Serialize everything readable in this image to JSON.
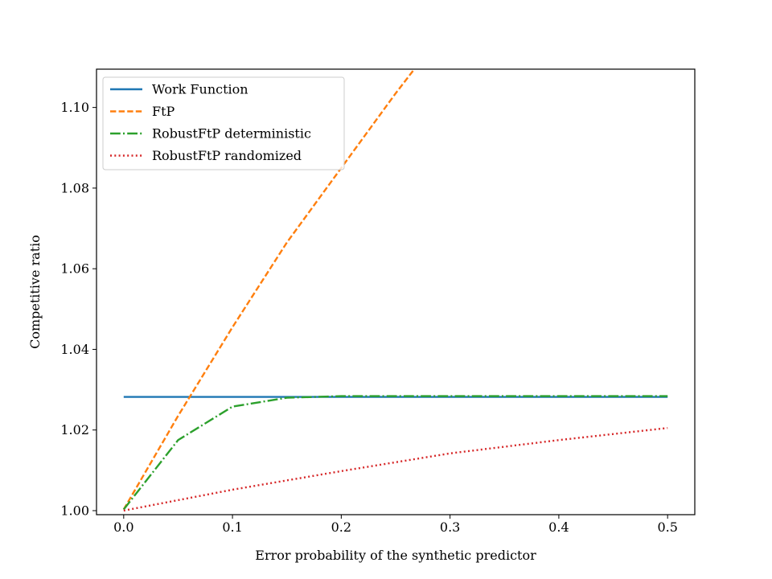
{
  "chart_data": {
    "type": "line",
    "title": "",
    "xlabel": "Error probability of the synthetic predictor",
    "ylabel": "Competitive ratio",
    "xlim": [
      -0.025,
      0.525
    ],
    "ylim": [
      0.999,
      1.1095
    ],
    "x_ticks": [
      0.0,
      0.1,
      0.2,
      0.3,
      0.4,
      0.5
    ],
    "x_tick_labels": [
      "0.0",
      "0.1",
      "0.2",
      "0.3",
      "0.4",
      "0.5"
    ],
    "y_ticks": [
      1.0,
      1.02,
      1.04,
      1.06,
      1.08,
      1.1
    ],
    "y_tick_labels": [
      "1.00",
      "1.02",
      "1.04",
      "1.06",
      "1.08",
      "1.10"
    ],
    "grid": false,
    "legend_position": "top-left",
    "series": [
      {
        "name": "Work Function",
        "color": "#1f77b4",
        "style": "solid",
        "x": [
          0.0,
          0.5
        ],
        "y": [
          1.0282,
          1.0282
        ]
      },
      {
        "name": "FtP",
        "color": "#ff7f0e",
        "style": "dashed",
        "x": [
          0.0,
          0.05,
          0.1,
          0.15,
          0.2,
          0.25,
          0.3
        ],
        "y": [
          1.0003,
          1.0235,
          1.0455,
          1.0665,
          1.085,
          1.1035,
          1.121
        ]
      },
      {
        "name": "RobustFtP deterministic",
        "color": "#2ca02c",
        "style": "dashdot",
        "x": [
          0.0,
          0.05,
          0.1,
          0.15,
          0.2,
          0.25,
          0.3,
          0.35,
          0.4,
          0.45,
          0.5
        ],
        "y": [
          1.0003,
          1.0175,
          1.0258,
          1.028,
          1.0284,
          1.0284,
          1.0284,
          1.0284,
          1.0284,
          1.0284,
          1.0284
        ]
      },
      {
        "name": "RobustFtP randomized",
        "color": "#d62728",
        "style": "dotted",
        "x": [
          0.0,
          0.1,
          0.2,
          0.3,
          0.4,
          0.5
        ],
        "y": [
          1.0,
          1.0052,
          1.0098,
          1.0142,
          1.0175,
          1.0205
        ]
      }
    ]
  }
}
